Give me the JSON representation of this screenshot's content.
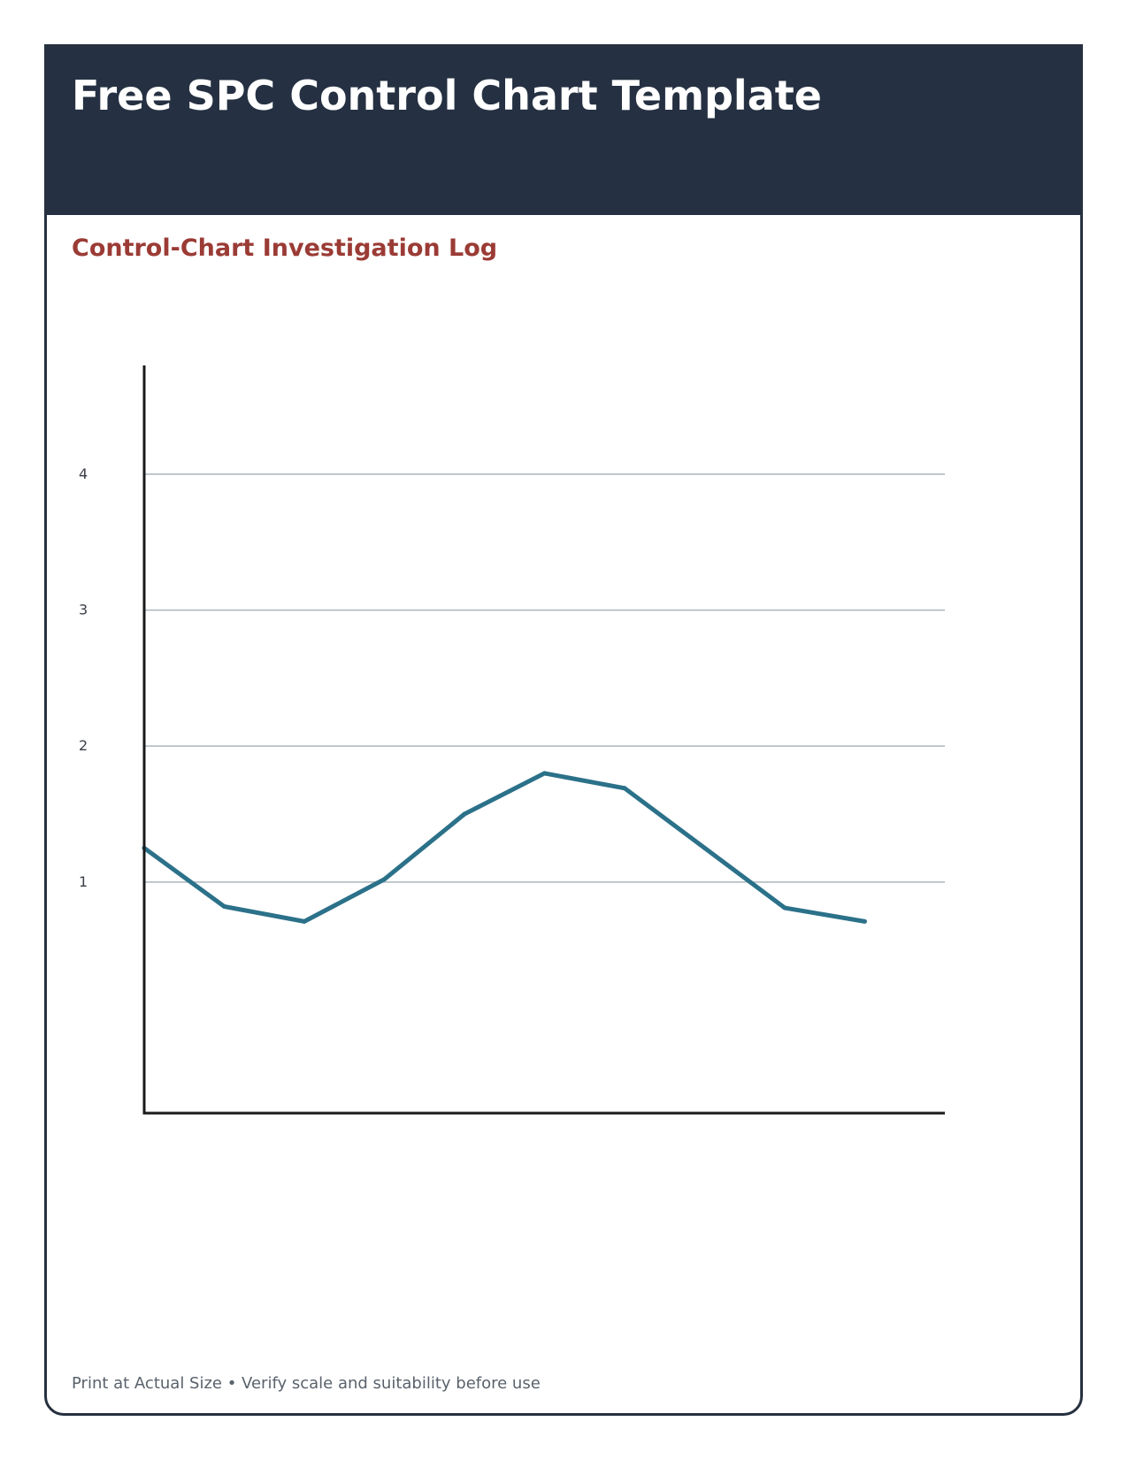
{
  "header": {
    "title": "Free SPC Control Chart Template"
  },
  "section": {
    "title": "Control-Chart Investigation Log"
  },
  "footer": {
    "note": "Print at Actual Size • Verify scale and suitability before use"
  },
  "colors": {
    "header_bg": "#253142",
    "accent": "#9b3b35",
    "series": "#2b7189",
    "grid": "#a9b6bb",
    "axis": "#1a1a1a"
  },
  "chart_data": {
    "type": "line",
    "title": "",
    "xlabel": "",
    "ylabel": "",
    "ylim": [
      -0.7,
      4.8
    ],
    "yticks": [
      1,
      2,
      3,
      4
    ],
    "grid": true,
    "x": [
      1,
      2,
      3,
      4,
      5,
      6,
      7,
      8,
      9,
      10
    ],
    "xlim": [
      1,
      11
    ],
    "series": [
      {
        "name": "",
        "values": [
          1.25,
          0.82,
          0.71,
          1.02,
          1.5,
          1.8,
          1.69,
          1.25,
          0.81,
          0.71
        ]
      }
    ]
  }
}
